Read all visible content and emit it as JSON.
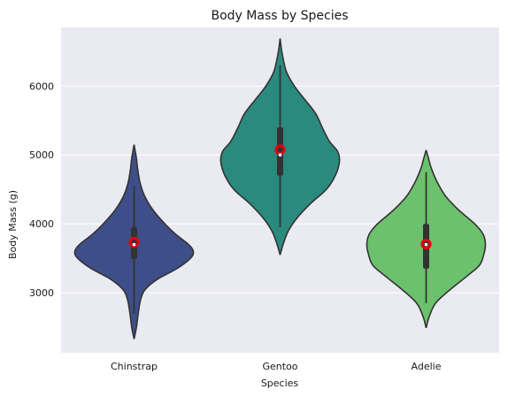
{
  "chart_data": {
    "type": "violin",
    "title": "Body Mass by Species",
    "xlabel": "Species",
    "ylabel": "Body Mass (g)",
    "categories": [
      "Chinstrap",
      "Gentoo",
      "Adelie"
    ],
    "ylim": [
      2130,
      6850
    ],
    "yticks": [
      3000,
      4000,
      5000,
      6000
    ],
    "grid": true,
    "colors": {
      "Chinstrap": "#3e4e88",
      "Gentoo": "#2a8a7e",
      "Adelie": "#6cc26c",
      "background": "#eaeaf2",
      "grid": "#ffffff",
      "outline": "#333333",
      "mean_marker": "#e8000b"
    },
    "violins": [
      {
        "category": "Chinstrap",
        "min": 2700,
        "q1": 3490,
        "median": 3700,
        "q3": 3950,
        "max": 4550,
        "mean": 3733,
        "density": [
          [
            2330,
            0.0
          ],
          [
            2500,
            0.04
          ],
          [
            2700,
            0.07
          ],
          [
            2900,
            0.11
          ],
          [
            3050,
            0.19
          ],
          [
            3200,
            0.4
          ],
          [
            3350,
            0.72
          ],
          [
            3500,
            0.95
          ],
          [
            3600,
            1.0
          ],
          [
            3700,
            0.92
          ],
          [
            3850,
            0.7
          ],
          [
            4000,
            0.52
          ],
          [
            4200,
            0.32
          ],
          [
            4400,
            0.18
          ],
          [
            4600,
            0.1
          ],
          [
            4800,
            0.06
          ],
          [
            4950,
            0.04
          ],
          [
            5150,
            0.0
          ]
        ]
      },
      {
        "category": "Gentoo",
        "min": 3950,
        "q1": 4700,
        "median": 5000,
        "q3": 5400,
        "max": 6300,
        "mean": 5076,
        "density": [
          [
            3550,
            0.0
          ],
          [
            3700,
            0.05
          ],
          [
            3900,
            0.14
          ],
          [
            4100,
            0.3
          ],
          [
            4300,
            0.52
          ],
          [
            4500,
            0.78
          ],
          [
            4700,
            0.93
          ],
          [
            4900,
            1.0
          ],
          [
            5050,
            0.97
          ],
          [
            5200,
            0.83
          ],
          [
            5400,
            0.71
          ],
          [
            5600,
            0.6
          ],
          [
            5800,
            0.42
          ],
          [
            6000,
            0.24
          ],
          [
            6200,
            0.11
          ],
          [
            6400,
            0.05
          ],
          [
            6550,
            0.02
          ],
          [
            6690,
            0.0
          ]
        ]
      },
      {
        "category": "Adelie",
        "min": 2850,
        "q1": 3350,
        "median": 3700,
        "q3": 4000,
        "max": 4750,
        "mean": 3706,
        "density": [
          [
            2490,
            0.0
          ],
          [
            2650,
            0.05
          ],
          [
            2850,
            0.16
          ],
          [
            3050,
            0.41
          ],
          [
            3250,
            0.7
          ],
          [
            3400,
            0.9
          ],
          [
            3550,
            0.97
          ],
          [
            3700,
            1.0
          ],
          [
            3850,
            0.96
          ],
          [
            4000,
            0.82
          ],
          [
            4200,
            0.55
          ],
          [
            4400,
            0.33
          ],
          [
            4600,
            0.19
          ],
          [
            4800,
            0.09
          ],
          [
            4950,
            0.04
          ],
          [
            5070,
            0.0
          ]
        ]
      }
    ]
  }
}
